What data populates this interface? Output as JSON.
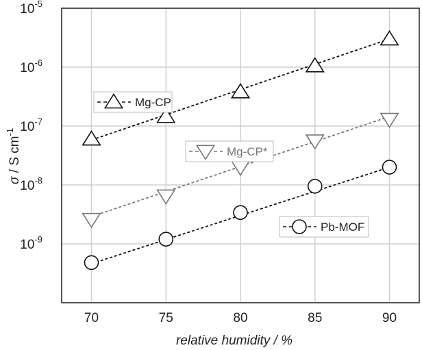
{
  "chart_data": {
    "type": "scatter",
    "xlabel": "relative humidity / %",
    "ylabel_symbol": "σ",
    "ylabel_unit": " / S cm",
    "ylabel_exp": "-1",
    "xlim": [
      68,
      92
    ],
    "ylim": [
      1e-10,
      1e-05
    ],
    "yscale": "log",
    "grid": true,
    "xticks": [
      70,
      75,
      80,
      85,
      90
    ],
    "x_tick_labels": [
      "70",
      "75",
      "80",
      "85",
      "90"
    ],
    "y_tick_labels": [
      {
        "base": "10",
        "exp": "-5"
      },
      {
        "base": "10",
        "exp": "-6"
      },
      {
        "base": "10",
        "exp": "-7"
      },
      {
        "base": "10",
        "exp": "-8"
      },
      {
        "base": "10",
        "exp": "-9"
      }
    ],
    "x": [
      70,
      75,
      80,
      85,
      90
    ],
    "series": [
      {
        "name": "Mg-CP",
        "marker": "triangle-up",
        "color": "#111111",
        "line_style": "dashed",
        "values": [
          6e-08,
          1.45e-07,
          3.8e-07,
          1.05e-06,
          3e-06
        ],
        "fit": [
          5.8e-08,
          3e-06
        ],
        "legend_label": "Mg-CP",
        "legend_position": "upper-left"
      },
      {
        "name": "Mg-CP*",
        "marker": "triangle-down",
        "color": "#777777",
        "line_style": "dashed",
        "values": [
          2.6e-09,
          6.5e-09,
          2e-08,
          5.6e-08,
          1.3e-07
        ],
        "fit": [
          2.9e-09,
          1.45e-07
        ],
        "legend_label": "Mg-CP*",
        "legend_position": "center"
      },
      {
        "name": "Pb-MOF",
        "marker": "circle",
        "color": "#111111",
        "line_style": "dashed",
        "values": [
          4.8e-10,
          1.2e-09,
          3.4e-09,
          9.5e-09,
          2e-08
        ],
        "fit": [
          4.6e-10,
          2e-08
        ],
        "legend_label": "Pb-MOF",
        "legend_position": "lower-right"
      }
    ]
  }
}
